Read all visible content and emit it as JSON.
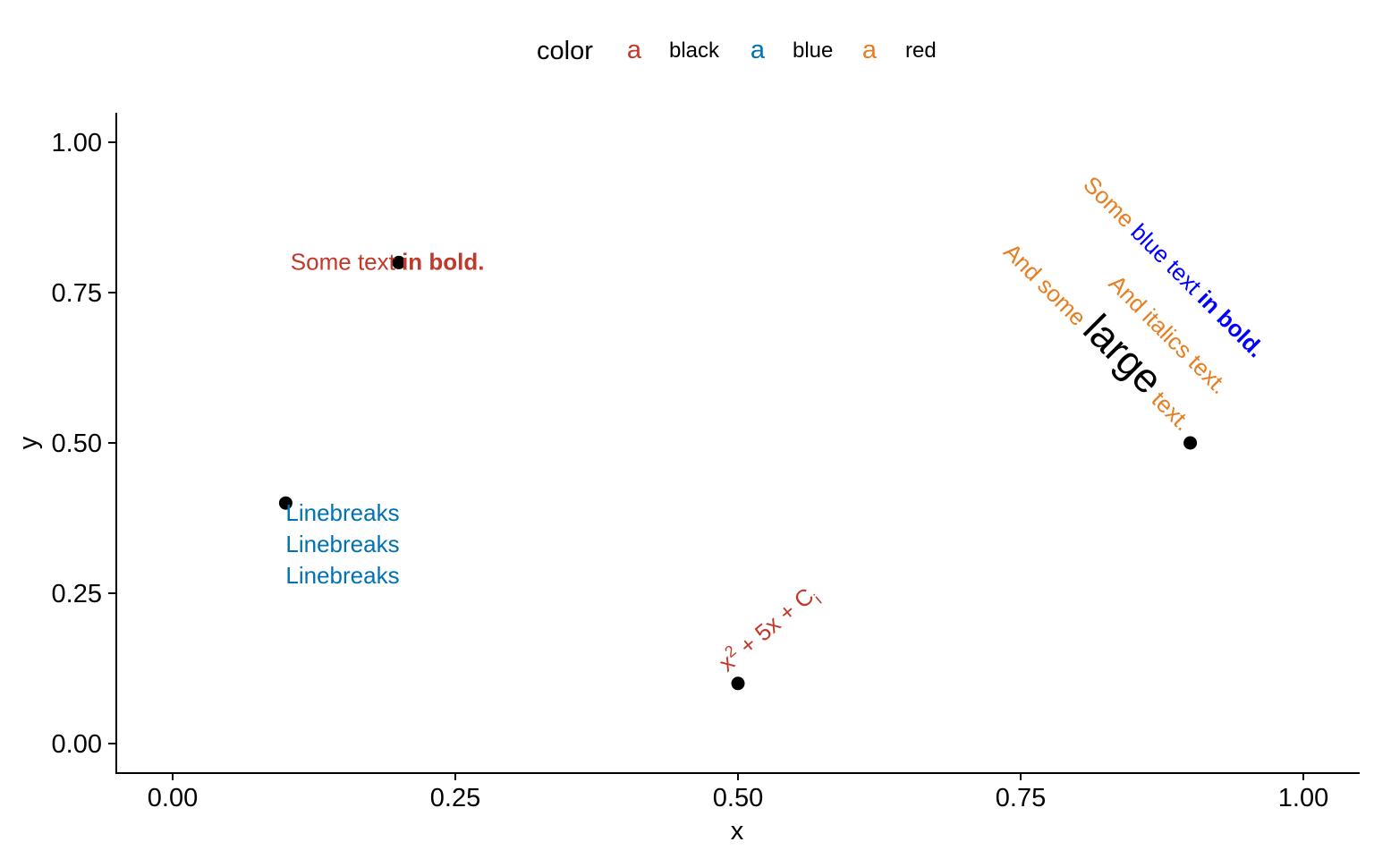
{
  "chart_data": {
    "type": "scatter",
    "xlabel": "x",
    "ylabel": "y",
    "xlim": [
      -0.05,
      1.05
    ],
    "ylim": [
      -0.05,
      1.05
    ],
    "x_ticks": [
      0.0,
      0.25,
      0.5,
      0.75,
      1.0
    ],
    "x_tick_labels": [
      "0.00",
      "0.25",
      "0.50",
      "0.75",
      "1.00"
    ],
    "y_ticks": [
      0.0,
      0.25,
      0.5,
      0.75,
      1.0
    ],
    "y_tick_labels": [
      "0.00",
      "0.25",
      "0.50",
      "0.75",
      "1.00"
    ],
    "grid": false,
    "legend": {
      "title": "color",
      "position": "top",
      "key_glyph": "a",
      "entries": [
        {
          "label": "black",
          "color": "#c0392b"
        },
        {
          "label": "blue",
          "color": "#0072b2"
        },
        {
          "label": "red",
          "color": "#e67e22"
        }
      ]
    },
    "points": [
      {
        "x": 0.2,
        "y": 0.8
      },
      {
        "x": 0.1,
        "y": 0.4
      },
      {
        "x": 0.5,
        "y": 0.1
      },
      {
        "x": 0.9,
        "y": 0.5
      }
    ],
    "annotations": [
      {
        "id": "bold",
        "x": 0.2,
        "y": 0.8,
        "angle": 0,
        "color": "#c0392b",
        "lines": [
          [
            {
              "text": "Some text "
            },
            {
              "text": "in bold.",
              "weight": "bold"
            }
          ]
        ]
      },
      {
        "id": "linebreaks",
        "x": 0.1,
        "y": 0.4,
        "angle": 0,
        "color": "#0072b2",
        "lines": [
          [
            {
              "text": "Linebreaks"
            }
          ],
          [
            {
              "text": "Linebreaks"
            }
          ],
          [
            {
              "text": "Linebreaks"
            }
          ]
        ]
      },
      {
        "id": "formula",
        "x": 0.5,
        "y": 0.1,
        "angle": -40,
        "color": "#c0392b",
        "lines": [
          [
            {
              "text": "x"
            },
            {
              "text": "2",
              "sup": true
            },
            {
              "text": " + 5x + C"
            },
            {
              "text": "i",
              "sub": true
            }
          ]
        ]
      },
      {
        "id": "styled",
        "x": 0.9,
        "y": 0.5,
        "angle": 45,
        "color": "#e67e22",
        "lines": [
          [
            {
              "text": "Some "
            },
            {
              "text": "blue text ",
              "color": "#0000ff"
            },
            {
              "text": "in bold.",
              "color": "#0000ff",
              "weight": "bold"
            }
          ],
          [
            {
              "text": "And italics text."
            }
          ],
          [
            {
              "text": "And some "
            },
            {
              "text": "large",
              "color": "#000000",
              "size": "large"
            },
            {
              "text": " text."
            }
          ]
        ]
      }
    ]
  }
}
